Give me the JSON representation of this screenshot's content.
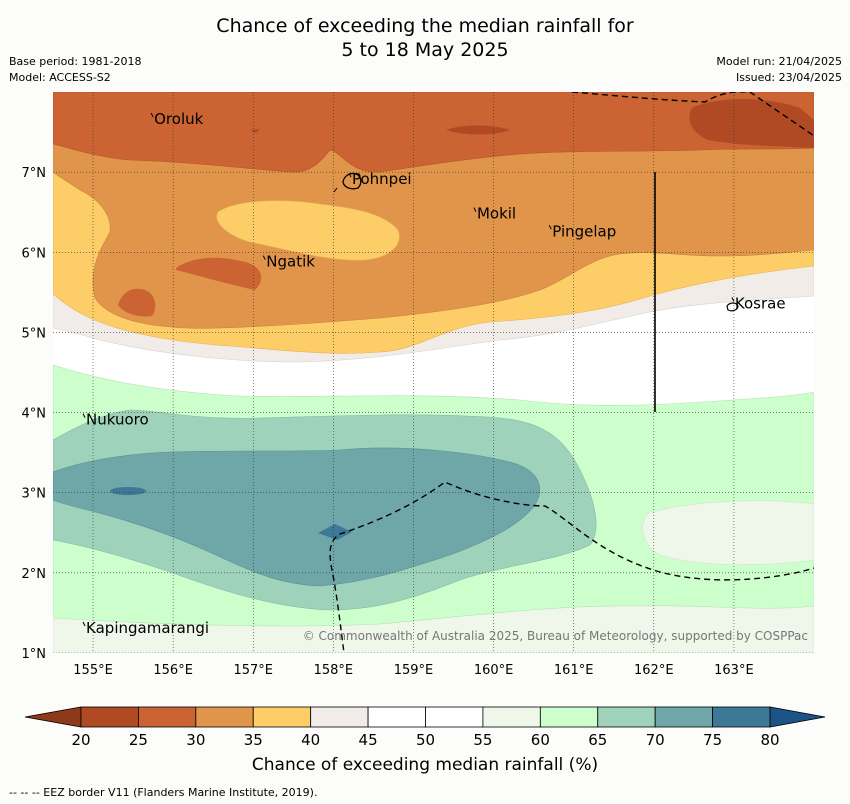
{
  "title_line1": "Chance of exceeding the median rainfall for",
  "title_line2": "5 to 18 May 2025",
  "base_period": "Base period: 1981-2018",
  "model": "Model: ACCESS-S2",
  "model_run": "Model run: 21/04/2025",
  "issued": "Issued: 23/04/2025",
  "copyright": "© Commonwealth of Australia 2025, Bureau of Meteorology, supported by COSPPac",
  "attribution": "--  --  -- EEZ border V11 (Flanders Marine Institute, 2019).",
  "colorbar_label": "Chance of exceeding median rainfall (%)",
  "lon_ticks": [
    "155°E",
    "156°E",
    "157°E",
    "158°E",
    "159°E",
    "160°E",
    "161°E",
    "162°E",
    "163°E"
  ],
  "lat_ticks": [
    "7°N",
    "6°N",
    "5°N",
    "4°N",
    "3°N",
    "2°N",
    "1°N"
  ],
  "colorbar_ticks": [
    "20",
    "25",
    "30",
    "35",
    "40",
    "45",
    "50",
    "55",
    "60",
    "65",
    "70",
    "75",
    "80"
  ],
  "colorbar_colors": [
    "#b04a25",
    "#cb6332",
    "#e0954a",
    "#fdcd68",
    "#f1ece8",
    "#ffffff",
    "#ffffff",
    "#eef7ea",
    "#ccffcc",
    "#9fd2bb",
    "#6fa6a7",
    "#3e7897"
  ],
  "colorbar_ends": {
    "low": "#8e3a1a",
    "high": "#1c5487"
  },
  "places": [
    {
      "name": "Oroluk",
      "lon": 155.75,
      "lat": 7.6
    },
    {
      "name": "Pohnpei",
      "lon": 158.22,
      "lat": 6.85
    },
    {
      "name": "Mokil",
      "lon": 159.78,
      "lat": 6.42
    },
    {
      "name": "Pingelap",
      "lon": 160.72,
      "lat": 6.2
    },
    {
      "name": "Ngatik",
      "lon": 157.15,
      "lat": 5.82
    },
    {
      "name": "Kosrae",
      "lon": 163.0,
      "lat": 5.3
    },
    {
      "name": "Nukuoro",
      "lon": 154.9,
      "lat": 3.85
    },
    {
      "name": "Kapingamarangi",
      "lon": 154.9,
      "lat": 1.25
    }
  ],
  "map_extent": {
    "lon_min": 154.5,
    "lon_max": 164.0,
    "lat_min": 1.0,
    "lat_max": 8.0
  }
}
